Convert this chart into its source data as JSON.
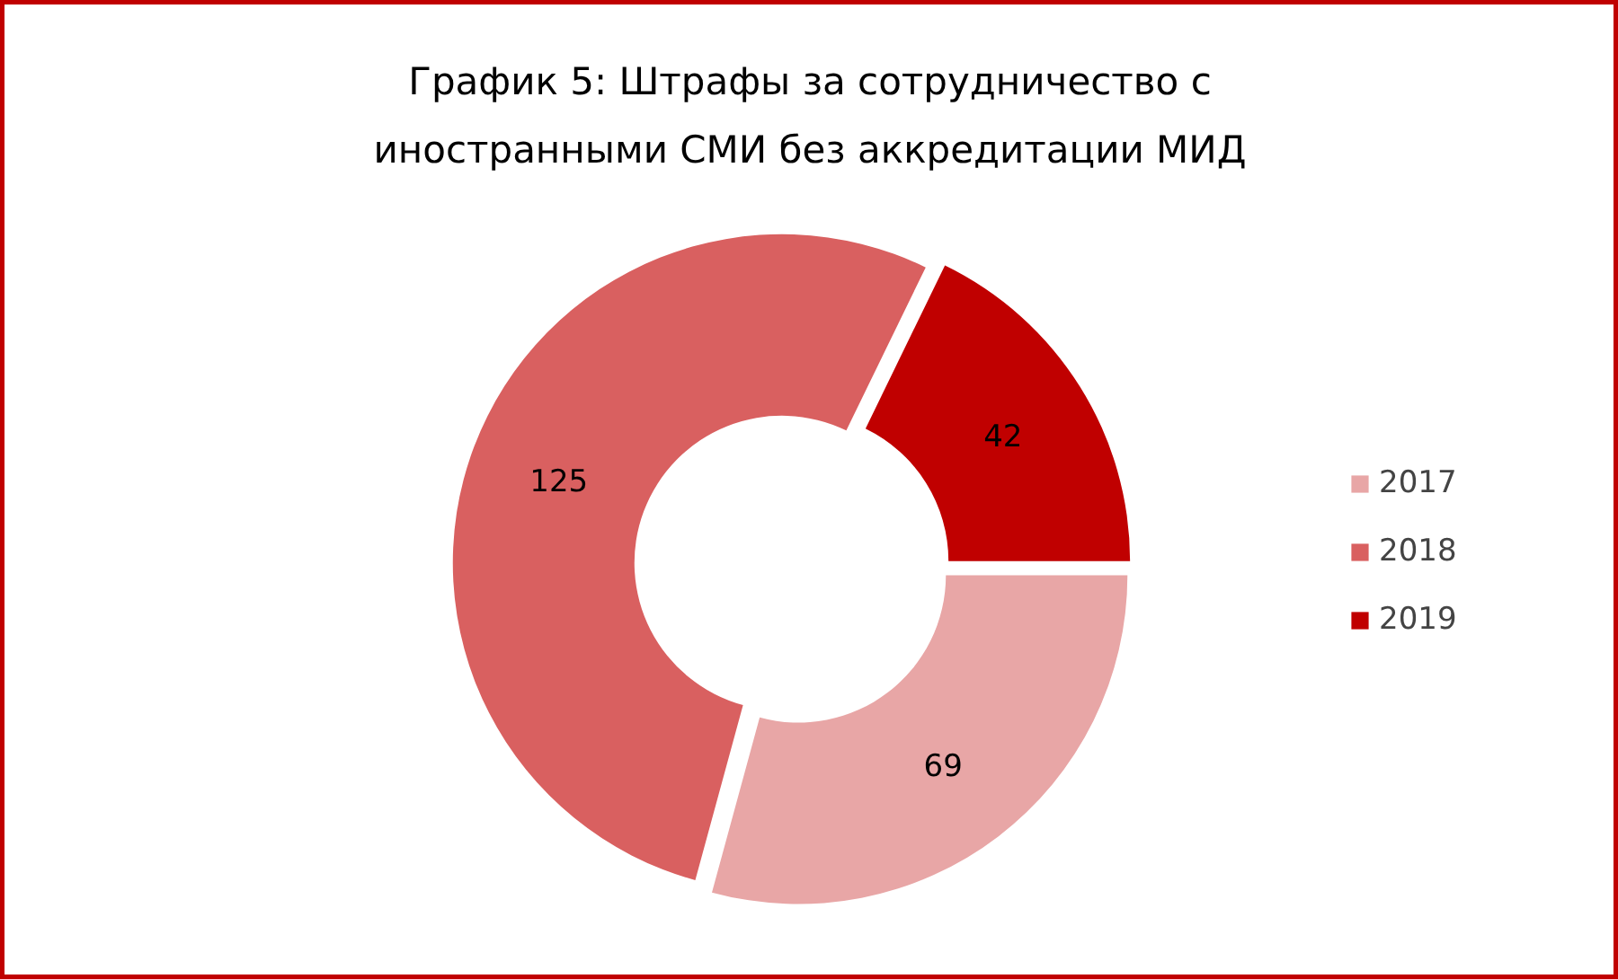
{
  "chart_data": {
    "type": "donut",
    "title": "График 5: Штрафы за сотрудничество с\nиностранными СМИ без аккредитации МИД",
    "categories": [
      "2017",
      "2018",
      "2019"
    ],
    "values": [
      69,
      125,
      42
    ],
    "colors": [
      "#e8a6a6",
      "#d96060",
      "#c00000"
    ],
    "data_labels": true,
    "legend": "right"
  }
}
